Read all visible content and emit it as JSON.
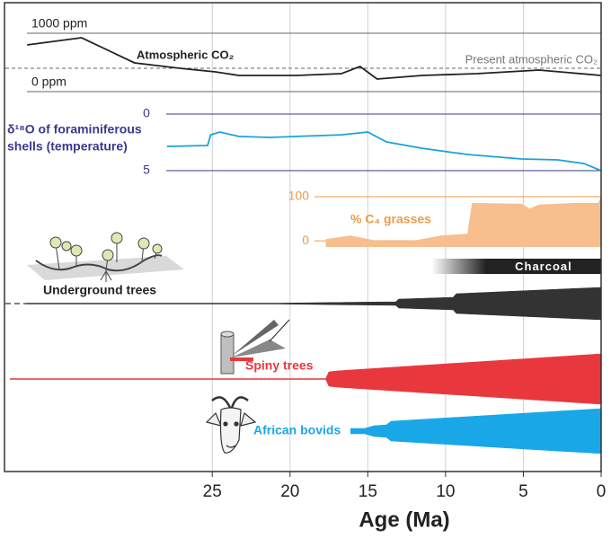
{
  "chart_data": {
    "type": "timeline",
    "xlabel": "Age (Ma)",
    "xlim": [
      38.3,
      0
    ],
    "xticks": [
      25,
      20,
      15,
      10,
      5,
      0
    ],
    "grid": true,
    "panels": [
      {
        "type": "line",
        "label": "Atmospheric CO₂",
        "color": "#222222",
        "ylim": [
          0,
          1000
        ],
        "yticks": [
          {
            "value": 1000,
            "label": "1000 ppm"
          },
          {
            "value": 0,
            "label": "0 ppm"
          }
        ],
        "reference": {
          "value": 400,
          "label": "Present atmospheric CO₂"
        },
        "x": [
          36.9,
          33.4,
          30.0,
          27.1,
          24.8,
          23.3,
          19.6,
          16.7,
          15.5,
          14.4,
          11.5,
          8.0,
          4.0,
          0
        ],
        "values": [
          800,
          923,
          492,
          400,
          338,
          277,
          277,
          308,
          431,
          215,
          277,
          308,
          369,
          277
        ]
      },
      {
        "type": "line",
        "label": [
          "δ¹⁸O of foraminiferous",
          "shells (temperature)"
        ],
        "color": "#1ba3d6",
        "axis_color": "#3a3a8c",
        "ylim": [
          0,
          5
        ],
        "y_inverted": true,
        "yticks": [
          0,
          5
        ],
        "x": [
          27.9,
          25.3,
          25.1,
          24.5,
          23.3,
          21.3,
          19.6,
          16.7,
          15.0,
          13.8,
          11.5,
          8.6,
          5.1,
          2.8,
          1.1,
          0
        ],
        "values": [
          2.86,
          2.78,
          1.83,
          1.59,
          1.98,
          2.06,
          1.98,
          1.83,
          1.59,
          2.46,
          3.02,
          3.57,
          3.97,
          4.05,
          4.37,
          5.0
        ]
      },
      {
        "type": "area",
        "label": "% C₄ grasses",
        "color": "#f7be8e",
        "axis_color": "#ef9a4a",
        "ylim": [
          -14,
          100
        ],
        "yticks": [
          0,
          100
        ],
        "x": [
          17.7,
          16.1,
          14.4,
          12.1,
          10.3,
          8.6,
          8.3,
          5.1,
          4.6,
          4.0,
          1.7,
          0.2,
          0
        ],
        "values": [
          4,
          12,
          0,
          0,
          12,
          16,
          86,
          84,
          73,
          82,
          86,
          86,
          100
        ]
      },
      {
        "type": "bar",
        "label": "Charcoal",
        "color": "#222222",
        "fade_start": 10.9,
        "full_start": 7.4,
        "end": 0
      },
      {
        "type": "spindle",
        "label": "Underground trees",
        "color": "#333333",
        "dashed_x": [
          38.3,
          36.9
        ],
        "x": [
          36.9,
          20.7,
          13.2,
          13.0,
          9.5,
          9.3,
          0
        ],
        "values": [
          0.5,
          0.5,
          2,
          5,
          7,
          11,
          18
        ]
      },
      {
        "type": "spindle",
        "label": "Spiny trees",
        "color": "#e8383d",
        "x": [
          38.0,
          17.7,
          17.5,
          17.0,
          0
        ],
        "values": [
          0.5,
          0.5,
          8,
          9,
          28
        ]
      },
      {
        "type": "spindle",
        "label": "African bovids",
        "color": "#1aa7e8",
        "x": [
          16.1,
          15.2,
          14.6,
          13.8,
          13.5,
          0
        ],
        "values": [
          3,
          3,
          6,
          7,
          11,
          25
        ]
      }
    ]
  }
}
